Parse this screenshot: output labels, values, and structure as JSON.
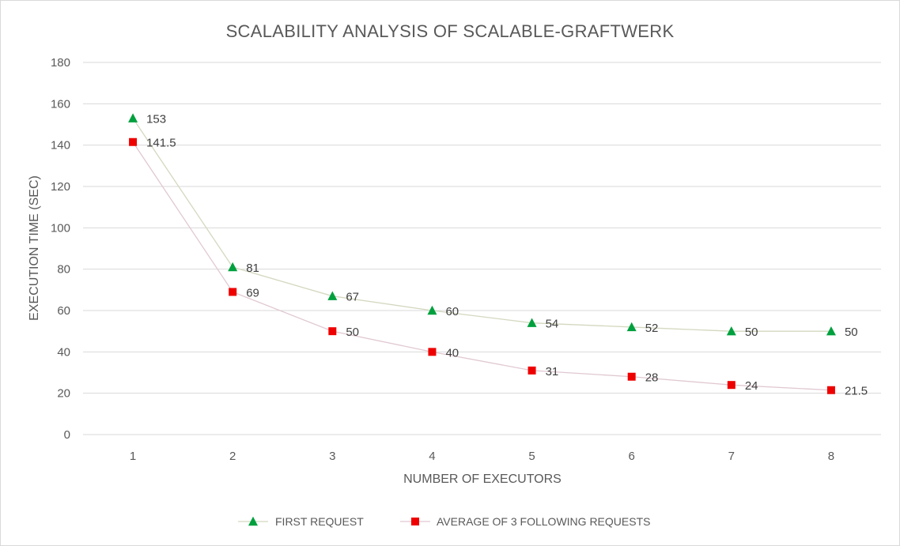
{
  "chart_data": {
    "type": "line",
    "title": "SCALABILITY ANALYSIS OF SCALABLE-GRAFTWERK",
    "xlabel": "NUMBER OF EXECUTORS",
    "ylabel": "EXECUTION TIME (SEC)",
    "x": [
      1,
      2,
      3,
      4,
      5,
      6,
      7,
      8
    ],
    "ylim": [
      0,
      180
    ],
    "yticks": [
      0,
      20,
      40,
      60,
      80,
      100,
      120,
      140,
      160,
      180
    ],
    "grid": true,
    "legend_position": "bottom",
    "series": [
      {
        "name": "FIRST REQUEST",
        "values": [
          153,
          81,
          67,
          60,
          54,
          52,
          50,
          50
        ],
        "labels": [
          "153",
          "81",
          "67",
          "60",
          "54",
          "52",
          "50",
          "50"
        ],
        "marker": "triangle",
        "marker_color": "#00a03e",
        "line_color": "#d3d8bf"
      },
      {
        "name": "AVERAGE OF 3 FOLLOWING REQUESTS",
        "values": [
          141.5,
          69,
          50,
          40,
          31,
          28,
          24,
          21.5
        ],
        "labels": [
          "141.5",
          "69",
          "50",
          "40",
          "31",
          "28",
          "24",
          "21.5"
        ],
        "marker": "square",
        "marker_color": "#ee0000",
        "line_color": "#e0c8d2"
      }
    ]
  }
}
